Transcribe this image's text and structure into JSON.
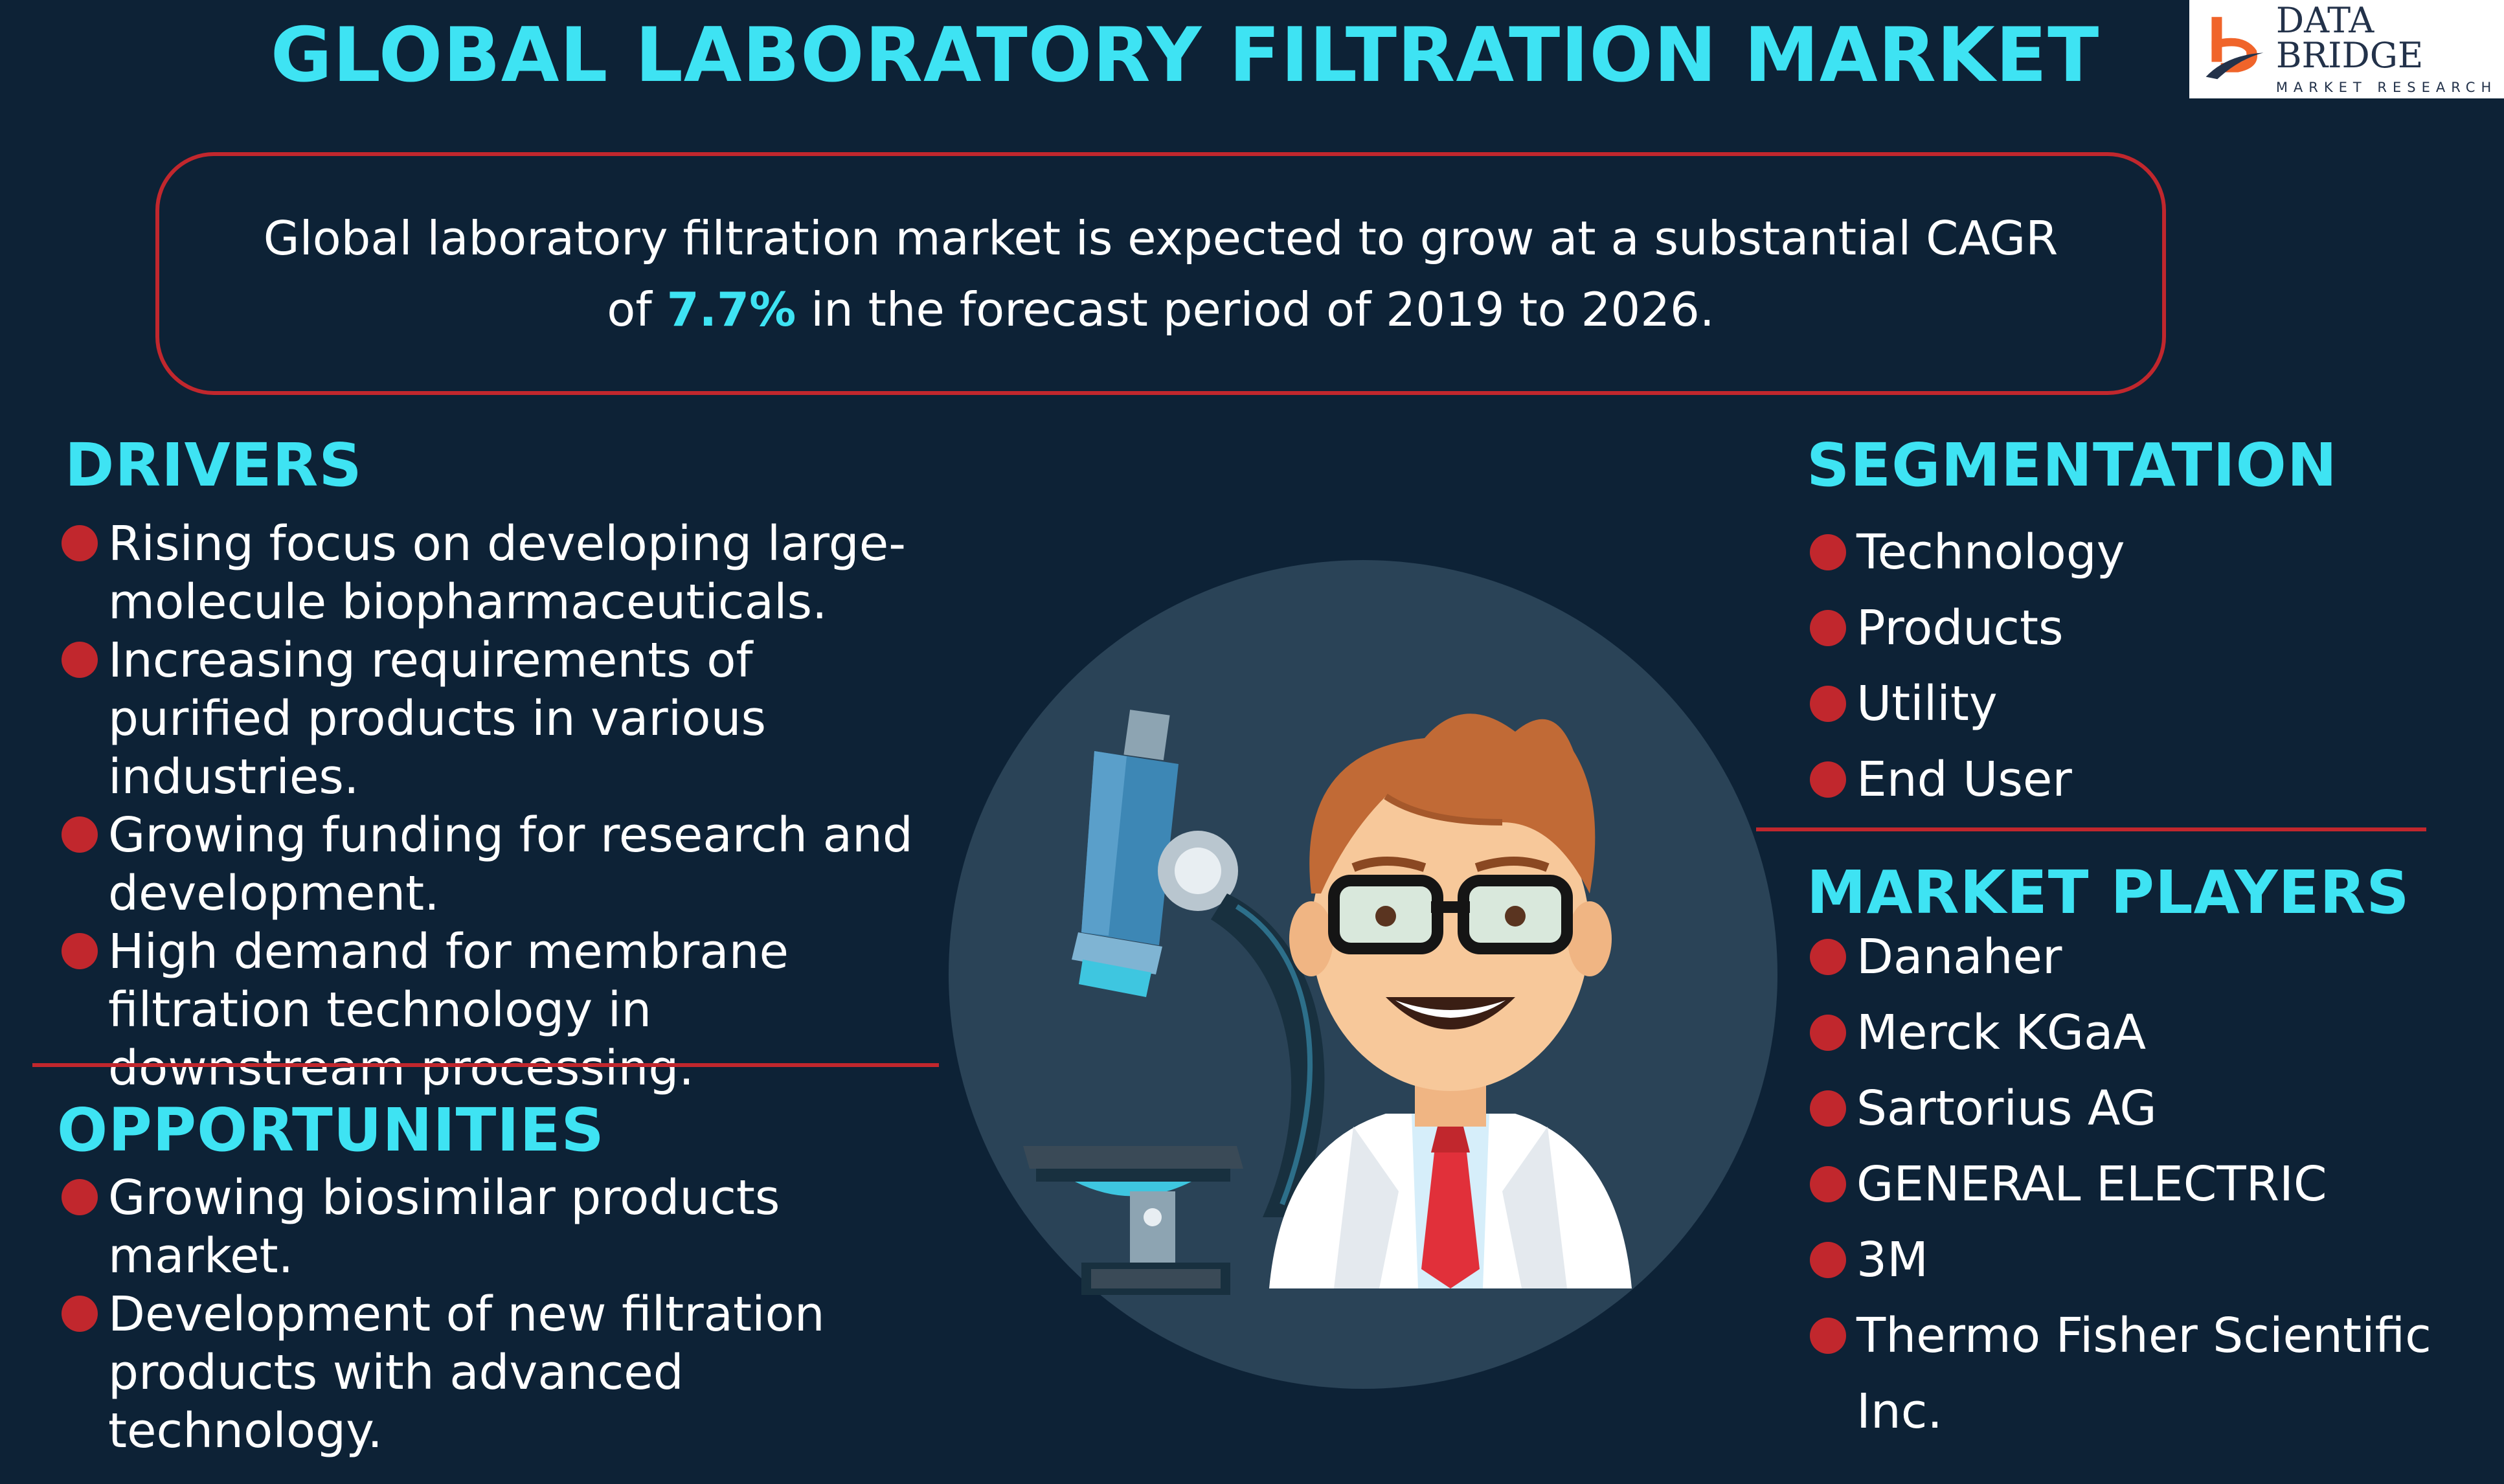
{
  "title": "GLOBAL LABORATORY FILTRATION MARKET",
  "logo": {
    "brand": "DATA BRIDGE",
    "sub": "MARKET RESEARCH"
  },
  "summary": {
    "line1": "Global laboratory filtration market is expected to grow at a substantial CAGR",
    "line2_pre": "of ",
    "cagr": "7.7%",
    "line2_post": " in the forecast period of 2019 to 2026."
  },
  "drivers": {
    "heading": "DRIVERS",
    "items": [
      "Rising focus on developing large-molecule biopharmaceuticals.",
      "Increasing requirements of purified products in various industries.",
      "Growing funding for research and development.",
      "High demand for membrane filtration technology in downstream processing."
    ]
  },
  "opportunities": {
    "heading": "OPPORTUNITIES",
    "items": [
      "Growing biosimilar products market.",
      "Development of new filtration products with advanced technology."
    ]
  },
  "segmentation": {
    "heading": "SEGMENTATION",
    "items": [
      "Technology",
      "Products",
      "Utility",
      "End User"
    ]
  },
  "market_players": {
    "heading": "MARKET PLAYERS",
    "items": [
      "Danaher",
      "Merck KGaA",
      "Sartorius AG",
      "GENERAL ELECTRIC",
      "3M",
      "Thermo Fisher Scientific Inc."
    ]
  },
  "colors": {
    "background": "#0d2236",
    "accent": "#3ee3f3",
    "red": "#c1272d",
    "circle": "#2a4357"
  }
}
